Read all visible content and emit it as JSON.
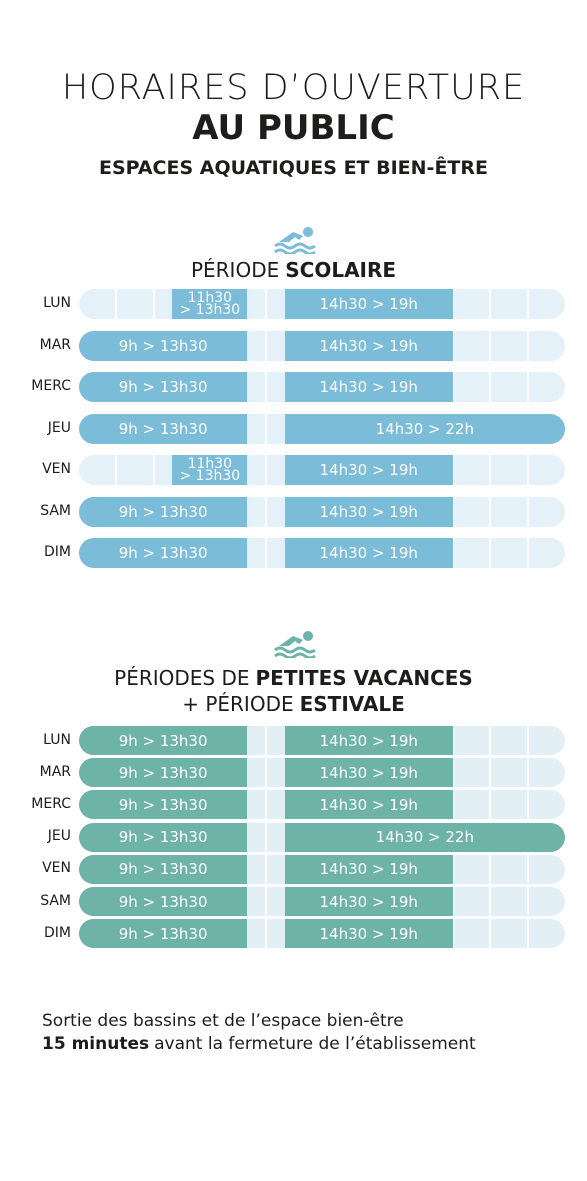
{
  "header": {
    "title_line1": "HORAIRES D’OUVERTURE",
    "title_line2": "AU PUBLIC",
    "subtitle": "ESPACES AQUATIQUES ET BIEN-ÊTRE"
  },
  "sections": [
    {
      "title_lines": [
        [
          "PÉRIODE",
          "SCOLAIRE"
        ]
      ],
      "color": "#7bbcd8",
      "light": "#e4f1f8",
      "rows": [
        {
          "day": "LUN",
          "slots": [
            {
              "lines": [
                "11h30",
                "> 13h30"
              ]
            },
            {
              "lines": [
                "14h30 > 19h"
              ]
            }
          ]
        },
        {
          "day": "MAR",
          "slots": [
            {
              "lines": [
                "9h > 13h30"
              ]
            },
            {
              "lines": [
                "14h30 > 19h"
              ]
            }
          ]
        },
        {
          "day": "MERC",
          "slots": [
            {
              "lines": [
                "9h > 13h30"
              ]
            },
            {
              "lines": [
                "14h30 > 19h"
              ]
            }
          ]
        },
        {
          "day": "JEU",
          "slots": [
            {
              "lines": [
                "9h > 13h30"
              ]
            },
            {
              "lines": [
                "14h30 > 22h"
              ]
            }
          ]
        },
        {
          "day": "VEN",
          "slots": [
            {
              "lines": [
                "11h30",
                "> 13h30"
              ]
            },
            {
              "lines": [
                "14h30 > 19h"
              ]
            }
          ]
        },
        {
          "day": "SAM",
          "slots": [
            {
              "lines": [
                "9h > 13h30"
              ]
            },
            {
              "lines": [
                "14h30 > 19h"
              ]
            }
          ]
        },
        {
          "day": "DIM",
          "slots": [
            {
              "lines": [
                "9h > 13h30"
              ]
            },
            {
              "lines": [
                "14h30 > 19h"
              ]
            }
          ]
        }
      ]
    },
    {
      "title_lines": [
        [
          "PÉRIODES DE",
          "PETITES VACANCES"
        ],
        [
          "+ PÉRIODE",
          "ESTIVALE"
        ]
      ],
      "color": "#6db3a8",
      "light": "#e2f0f5",
      "rows": [
        {
          "day": "LUN",
          "slots": [
            {
              "lines": [
                "9h > 13h30"
              ]
            },
            {
              "lines": [
                "14h30 > 19h"
              ]
            }
          ]
        },
        {
          "day": "MAR",
          "slots": [
            {
              "lines": [
                "9h > 13h30"
              ]
            },
            {
              "lines": [
                "14h30 > 19h"
              ]
            }
          ]
        },
        {
          "day": "MERC",
          "slots": [
            {
              "lines": [
                "9h > 13h30"
              ]
            },
            {
              "lines": [
                "14h30 > 19h"
              ]
            }
          ]
        },
        {
          "day": "JEU",
          "slots": [
            {
              "lines": [
                "9h > 13h30"
              ]
            },
            {
              "lines": [
                "14h30 > 22h"
              ]
            }
          ]
        },
        {
          "day": "VEN",
          "slots": [
            {
              "lines": [
                "9h > 13h30"
              ]
            },
            {
              "lines": [
                "14h30 > 19h"
              ]
            }
          ]
        },
        {
          "day": "SAM",
          "slots": [
            {
              "lines": [
                "9h > 13h30"
              ]
            },
            {
              "lines": [
                "14h30 > 19h"
              ]
            }
          ]
        },
        {
          "day": "DIM",
          "slots": [
            {
              "lines": [
                "9h > 13h30"
              ]
            },
            {
              "lines": [
                "14h30 > 19h"
              ]
            }
          ]
        }
      ]
    }
  ],
  "footer": {
    "line1": "Sortie des bassins et de l’espace bien-être",
    "bold": "15 minutes",
    "rest": "avant la fermeture de l’établissement"
  }
}
